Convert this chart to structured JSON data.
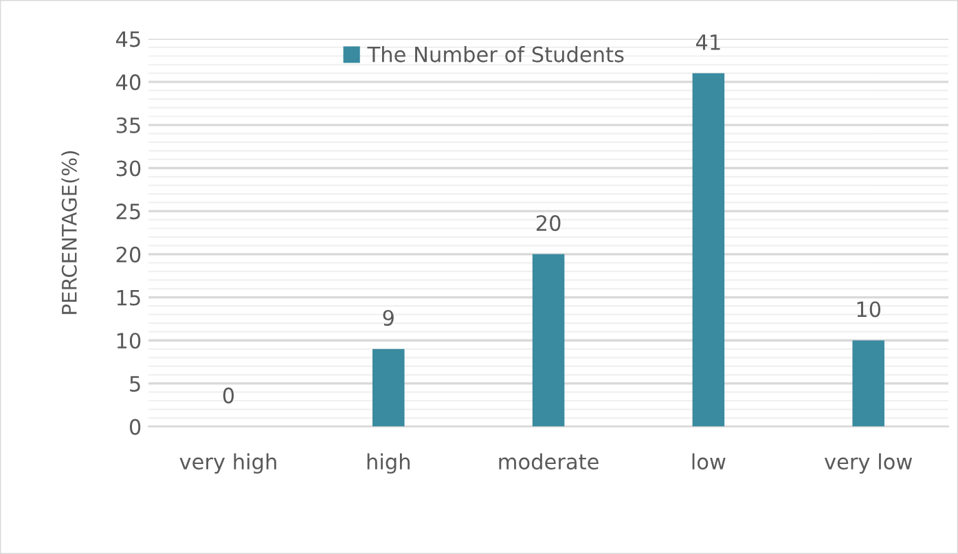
{
  "chart_data": {
    "type": "bar",
    "ylabel": "PERCENTAGE(%)",
    "categories": [
      "very high",
      "high",
      "moderate",
      "low",
      "very low"
    ],
    "series": [
      {
        "name": "The Number of Students",
        "color": "#3a8aa0",
        "values": [
          0,
          9,
          20,
          41,
          10
        ]
      }
    ],
    "ylim": [
      0,
      45
    ],
    "yticks": [
      0,
      {
        "value": 1,
        "label": null
      },
      {
        "value": 2,
        "label": null
      },
      {
        "value": 3,
        "label": null
      },
      {
        "value": 4,
        "label": null
      },
      5,
      {
        "value": 6,
        "label": null
      },
      {
        "value": 7,
        "label": null
      },
      {
        "value": 8,
        "label": null
      },
      {
        "value": 9,
        "label": null
      },
      10,
      {
        "value": 11,
        "label": null
      },
      {
        "value": 12,
        "label": null
      },
      {
        "value": 13,
        "label": null
      },
      {
        "value": 14,
        "label": null
      },
      15,
      {
        "value": 16,
        "label": null
      },
      {
        "value": 17,
        "label": null
      },
      {
        "value": 18,
        "label": null
      },
      {
        "value": 19,
        "label": null
      },
      20,
      {
        "value": 21,
        "label": null
      },
      {
        "value": 22,
        "label": null
      },
      {
        "value": 23,
        "label": null
      },
      {
        "value": 24,
        "label": null
      },
      25,
      {
        "value": 26,
        "label": null
      },
      {
        "value": 27,
        "label": null
      },
      {
        "value": 28,
        "label": null
      },
      {
        "value": 29,
        "label": null
      },
      30,
      {
        "value": 31,
        "label": null
      },
      {
        "value": 32,
        "label": null
      },
      {
        "value": 33,
        "label": null
      },
      {
        "value": 34,
        "label": null
      },
      35,
      {
        "value": 36,
        "label": null
      },
      {
        "value": 37,
        "label": null
      },
      {
        "value": 38,
        "label": null
      },
      {
        "value": 39,
        "label": null
      },
      40,
      {
        "value": 41,
        "label": null
      },
      {
        "value": 42,
        "label": null
      },
      {
        "value": 43,
        "label": null
      },
      {
        "value": 44,
        "label": null
      },
      45
    ],
    "grid": "y",
    "legend": "top",
    "data_labels": true
  }
}
